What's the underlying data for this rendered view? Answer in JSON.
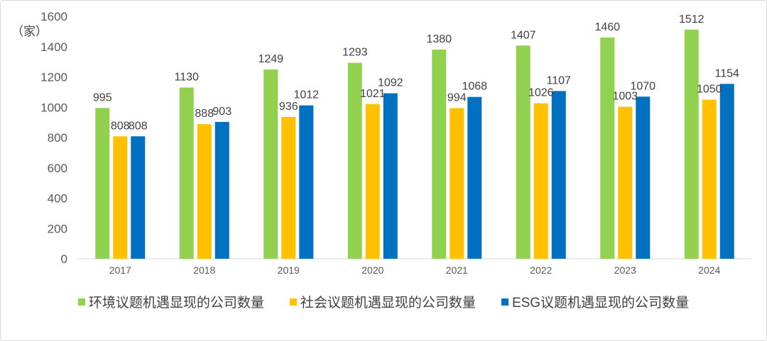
{
  "chart_data": {
    "type": "bar",
    "title": "",
    "unit_label": "（家）",
    "xlabel": "",
    "ylabel": "",
    "ylim": [
      0,
      1600
    ],
    "yticks": [
      0,
      200,
      400,
      600,
      800,
      1000,
      1200,
      1400,
      1600
    ],
    "grid": false,
    "legend_position": "bottom",
    "categories": [
      "2017",
      "2018",
      "2019",
      "2020",
      "2021",
      "2022",
      "2023",
      "2024"
    ],
    "series": [
      {
        "name": "环境议题机遇显现的公司数量",
        "color": "#92d050",
        "values": [
          995,
          1130,
          1249,
          1293,
          1380,
          1407,
          1460,
          1512
        ]
      },
      {
        "name": "社会议题机遇显现的公司数量",
        "color": "#ffc000",
        "values": [
          808,
          888,
          936,
          1021,
          994,
          1026,
          1003,
          1050
        ]
      },
      {
        "name": "ESG议题机遇显现的公司数量",
        "color": "#0070c0",
        "values": [
          808,
          903,
          1012,
          1092,
          1068,
          1107,
          1070,
          1154
        ]
      }
    ]
  }
}
